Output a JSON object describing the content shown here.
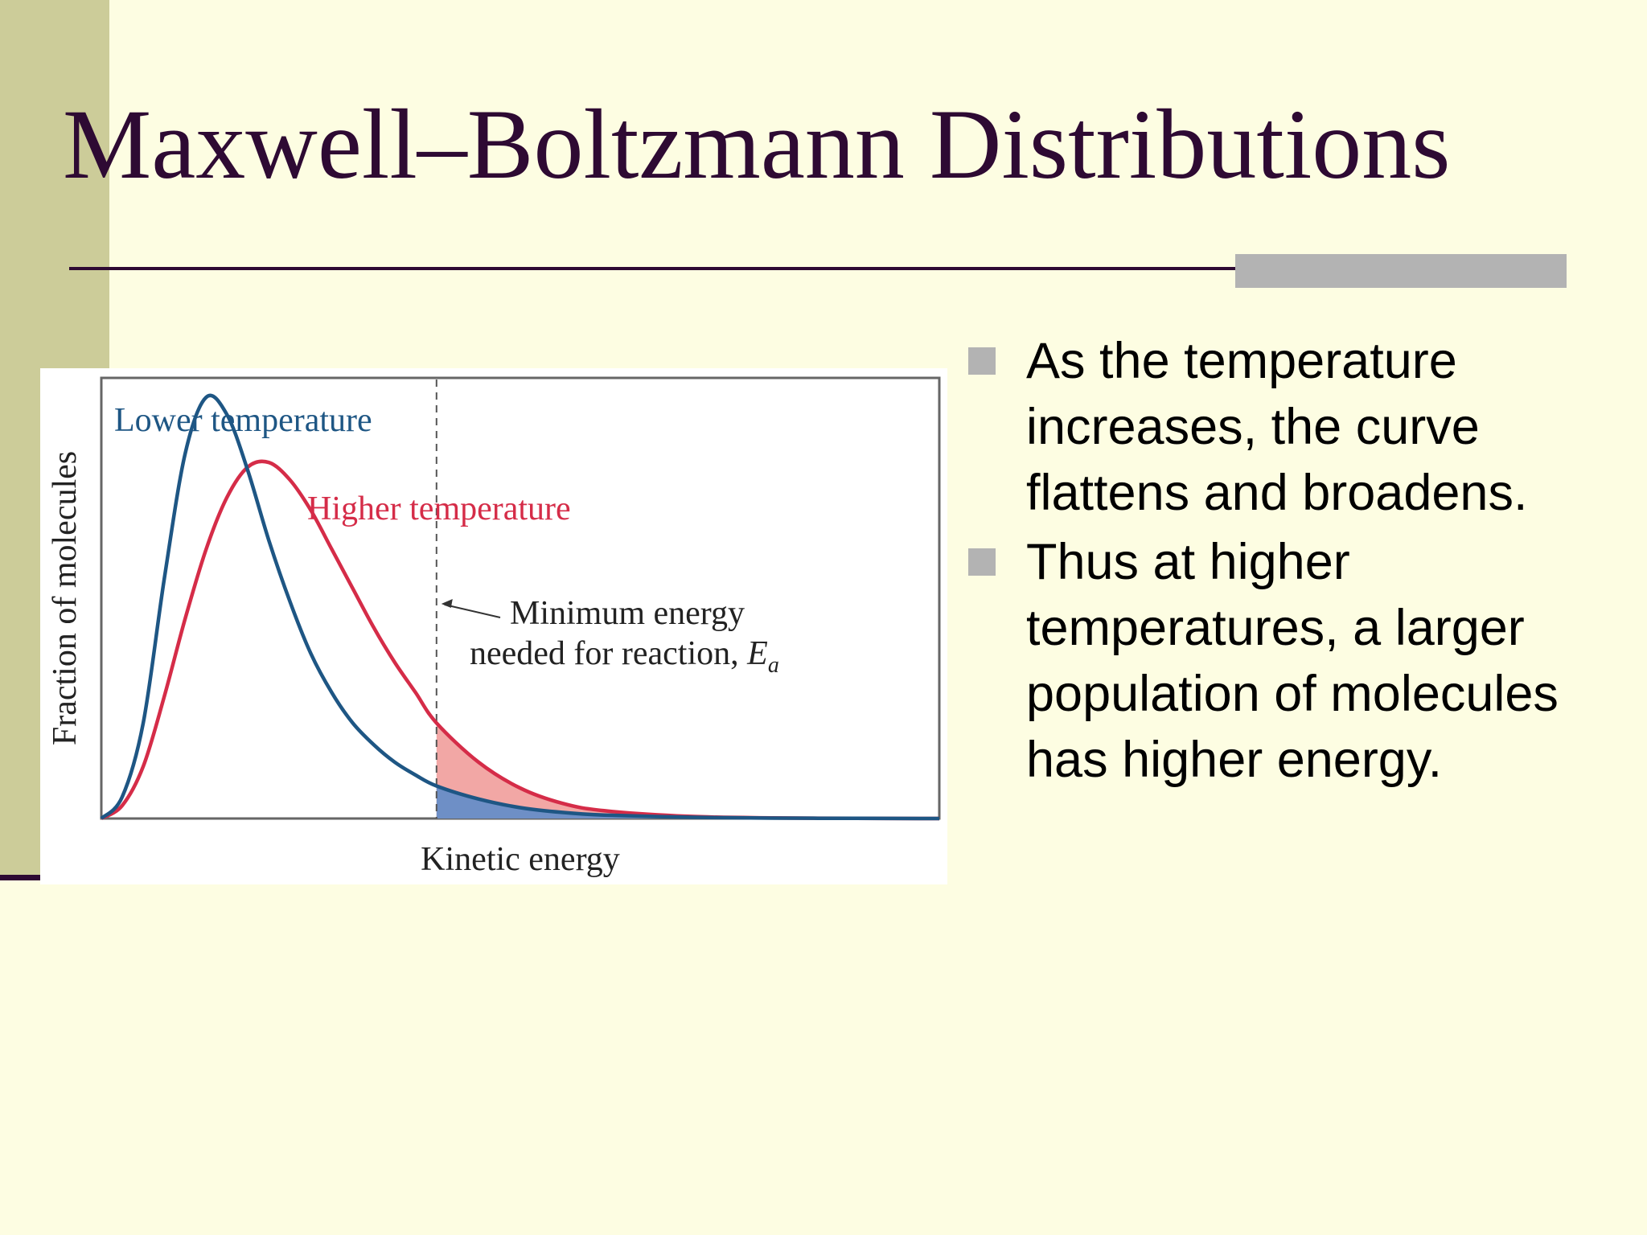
{
  "slide": {
    "title": "Maxwell–Boltzmann Distributions",
    "bullets": [
      {
        "text": "As the temperature increases, the curve flattens and broadens."
      },
      {
        "text": "Thus at higher temperatures, a larger population of molecules has higher energy."
      }
    ]
  },
  "colors": {
    "background": "#fdfde2",
    "side_bar": "#cccc99",
    "title": "#2e0a33",
    "rule": "#2e0a33",
    "rule_accent": "#b3b3b3",
    "bullet": "#b3b3b3",
    "axis": "#666666",
    "lower": "#1e5684",
    "higher": "#d52c48",
    "shade_lower": "#6e8fc6",
    "shade_higher": "#f2a7a5"
  },
  "chart_data": {
    "type": "line",
    "xlabel": "Kinetic energy",
    "ylabel": "Fraction of molecules",
    "x_ticks": "none",
    "y_ticks": "none",
    "xlim": [
      0,
      10
    ],
    "ylim": [
      0,
      1.0
    ],
    "series": [
      {
        "name": "Lower temperature",
        "color": "#1e5684",
        "x": [
          0,
          0.25,
          0.5,
          0.75,
          1.0,
          1.25,
          1.5,
          1.75,
          2.0,
          2.25,
          2.5,
          2.75,
          3.0,
          3.25,
          3.5,
          3.75,
          4.0,
          4.5,
          5.0,
          5.5,
          6.0,
          7.0,
          8.0,
          9.0,
          10.0
        ],
        "values": [
          0,
          0.05,
          0.22,
          0.55,
          0.84,
          0.97,
          0.93,
          0.8,
          0.64,
          0.5,
          0.38,
          0.29,
          0.22,
          0.17,
          0.13,
          0.1,
          0.075,
          0.045,
          0.025,
          0.014,
          0.008,
          0.003,
          0.001,
          0.0003,
          0
        ]
      },
      {
        "name": "Higher temperature",
        "color": "#d52c48",
        "x": [
          0,
          0.25,
          0.5,
          0.75,
          1.0,
          1.25,
          1.5,
          1.75,
          2.0,
          2.25,
          2.5,
          2.75,
          3.0,
          3.25,
          3.5,
          3.75,
          4.0,
          4.5,
          5.0,
          5.5,
          6.0,
          7.0,
          8.0,
          9.0,
          10.0
        ],
        "values": [
          0,
          0.03,
          0.12,
          0.28,
          0.46,
          0.62,
          0.74,
          0.81,
          0.82,
          0.78,
          0.71,
          0.62,
          0.53,
          0.44,
          0.36,
          0.29,
          0.22,
          0.13,
          0.07,
          0.035,
          0.018,
          0.005,
          0.0015,
          0.0004,
          0
        ]
      }
    ],
    "threshold": {
      "x": 4.0,
      "label_line1": "Minimum energy",
      "label_line2": "needed for reaction,",
      "symbol": "E",
      "subscript": "a"
    },
    "shaded": "area under each curve to the right of the threshold",
    "grid": false,
    "legend": "inline labels"
  }
}
